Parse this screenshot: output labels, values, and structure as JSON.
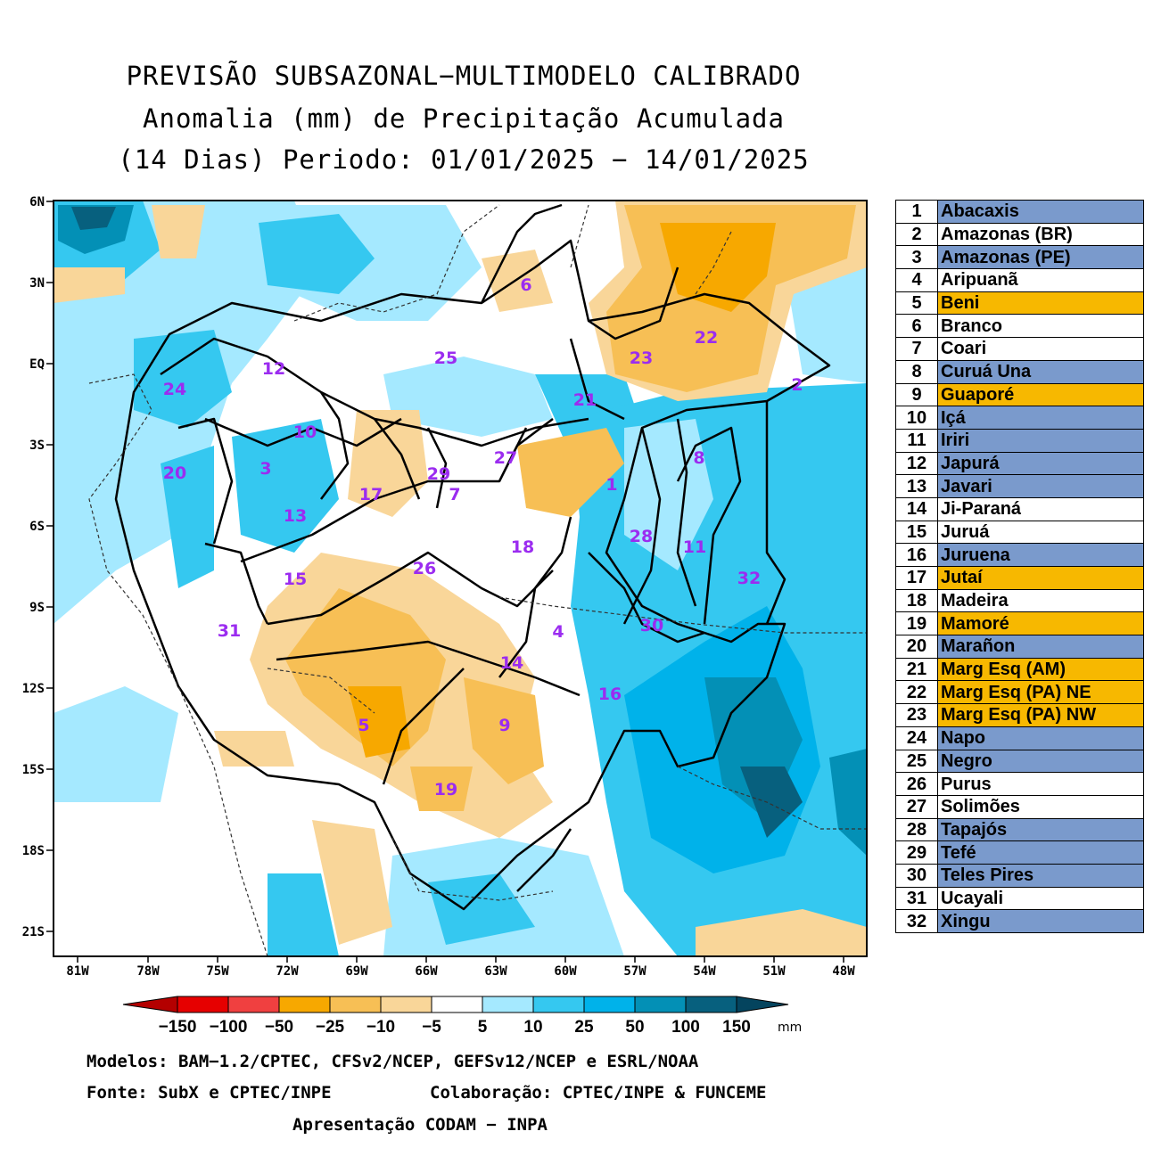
{
  "title": {
    "line1": "PREVISÃO SUBSAZONAL−MULTIMODELO CALIBRADO",
    "line2": "Anomalia (mm) de Precipitação Acumulada",
    "line3": "(14 Dias) Periodo: 01/01/2025 − 14/01/2025"
  },
  "map": {
    "lat_labels": [
      "6N",
      "3N",
      "EQ",
      "3S",
      "6S",
      "9S",
      "12S",
      "15S",
      "18S",
      "21S"
    ],
    "lon_labels": [
      "81W",
      "78W",
      "75W",
      "72W",
      "69W",
      "66W",
      "63W",
      "60W",
      "57W",
      "54W",
      "51W",
      "48W"
    ],
    "basin_numbers": [
      "1",
      "2",
      "3",
      "4",
      "5",
      "6",
      "7",
      "8",
      "9",
      "10",
      "11",
      "12",
      "13",
      "14",
      "15",
      "16",
      "17",
      "18",
      "19",
      "20",
      "21",
      "22",
      "23",
      "24",
      "25",
      "26",
      "27",
      "28",
      "29",
      "30",
      "31",
      "32"
    ]
  },
  "colorbar": {
    "labels": [
      "−150",
      "−100",
      "−50",
      "−25",
      "−10",
      "−5",
      "5",
      "10",
      "25",
      "50",
      "100",
      "150"
    ],
    "unit": "mm",
    "colors": [
      "#b40000",
      "#e60000",
      "#f04040",
      "#f7a800",
      "#f7bf55",
      "#f9d699",
      "#ffffff",
      "#a5e9ff",
      "#35c8f0",
      "#00b2ea",
      "#0390b6",
      "#07607e",
      "#04445e"
    ]
  },
  "basins": [
    {
      "num": "1",
      "name": "Abacaxis",
      "color": "#7a9acc"
    },
    {
      "num": "2",
      "name": "Amazonas (BR)",
      "color": "#ffffff"
    },
    {
      "num": "3",
      "name": "Amazonas (PE)",
      "color": "#7a9acc"
    },
    {
      "num": "4",
      "name": "Aripuanã",
      "color": "#ffffff"
    },
    {
      "num": "5",
      "name": "Beni",
      "color": "#f7b800"
    },
    {
      "num": "6",
      "name": "Branco",
      "color": "#ffffff"
    },
    {
      "num": "7",
      "name": "Coari",
      "color": "#ffffff"
    },
    {
      "num": "8",
      "name": "Curuá Una",
      "color": "#7a9acc"
    },
    {
      "num": "9",
      "name": "Guaporé",
      "color": "#f7b800"
    },
    {
      "num": "10",
      "name": "Içá",
      "color": "#7a9acc"
    },
    {
      "num": "11",
      "name": "Iriri",
      "color": "#7a9acc"
    },
    {
      "num": "12",
      "name": "Japurá",
      "color": "#7a9acc"
    },
    {
      "num": "13",
      "name": "Javari",
      "color": "#7a9acc"
    },
    {
      "num": "14",
      "name": "Ji-Paraná",
      "color": "#ffffff"
    },
    {
      "num": "15",
      "name": "Juruá",
      "color": "#ffffff"
    },
    {
      "num": "16",
      "name": "Juruena",
      "color": "#7a9acc"
    },
    {
      "num": "17",
      "name": "Jutaí",
      "color": "#f7b800"
    },
    {
      "num": "18",
      "name": "Madeira",
      "color": "#ffffff"
    },
    {
      "num": "19",
      "name": "Mamoré",
      "color": "#f7b800"
    },
    {
      "num": "20",
      "name": "Marañon",
      "color": "#7a9acc"
    },
    {
      "num": "21",
      "name": "Marg Esq (AM)",
      "color": "#f7b800"
    },
    {
      "num": "22",
      "name": "Marg Esq (PA) NE",
      "color": "#f7b800"
    },
    {
      "num": "23",
      "name": "Marg Esq (PA) NW",
      "color": "#f7b800"
    },
    {
      "num": "24",
      "name": "Napo",
      "color": "#7a9acc"
    },
    {
      "num": "25",
      "name": "Negro",
      "color": "#7a9acc"
    },
    {
      "num": "26",
      "name": "Purus",
      "color": "#ffffff"
    },
    {
      "num": "27",
      "name": "Solimões",
      "color": "#ffffff"
    },
    {
      "num": "28",
      "name": "Tapajós",
      "color": "#7a9acc"
    },
    {
      "num": "29",
      "name": "Tefé",
      "color": "#7a9acc"
    },
    {
      "num": "30",
      "name": "Teles Pires",
      "color": "#7a9acc"
    },
    {
      "num": "31",
      "name": "Ucayali",
      "color": "#ffffff"
    },
    {
      "num": "32",
      "name": "Xingu",
      "color": "#7a9acc"
    }
  ],
  "footer": {
    "models": "Modelos: BAM−1.2/CPTEC, CFSv2/NCEP, GEFSv12/NCEP e ESRL/NOAA",
    "source": "Fonte: SubX e CPTEC/INPE",
    "collab": "Colaboração: CPTEC/INPE & FUNCEME",
    "presentation": "Apresentação CODAM − INPA"
  }
}
